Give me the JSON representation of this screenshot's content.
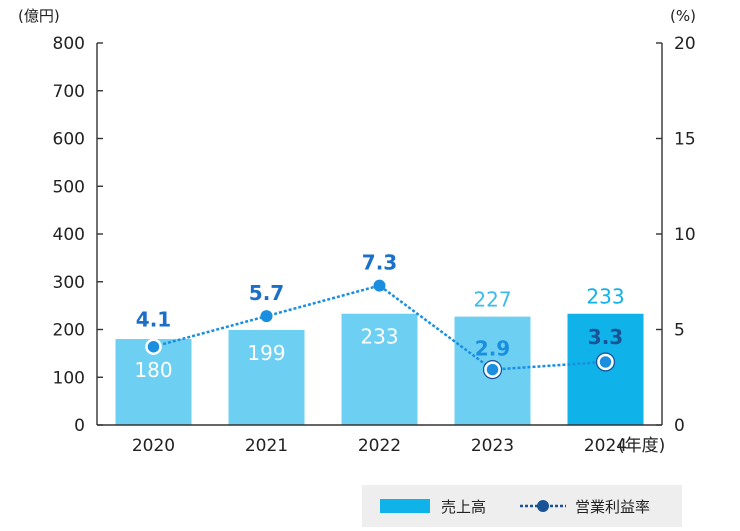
{
  "chart_data": {
    "type": "bar+line",
    "categories": [
      "2020",
      "2021",
      "2022",
      "2023",
      "2024"
    ],
    "x_suffix": "(年度)",
    "series": [
      {
        "name": "売上高",
        "kind": "bar",
        "axis": "left",
        "values": [
          180,
          199,
          233,
          227,
          233
        ],
        "labels": [
          "180",
          "199",
          "233",
          "227",
          "233"
        ],
        "color": "#6dd0f3",
        "highlight_color": "#10b2ea",
        "highlight_index": 4
      },
      {
        "name": "営業利益率",
        "kind": "line",
        "axis": "right",
        "values": [
          4.1,
          5.7,
          7.3,
          2.9,
          3.3
        ],
        "labels": [
          "4.1",
          "5.7",
          "7.3",
          "2.9",
          "3.3"
        ],
        "color": "#1a8fe0",
        "highlight_color": "#1a5296"
      }
    ],
    "y_left": {
      "unit": "(億円)",
      "min": 0,
      "max": 800,
      "ticks": [
        0,
        100,
        200,
        300,
        400,
        500,
        600,
        700,
        800
      ]
    },
    "y_right": {
      "unit": "(%)",
      "min": 0,
      "max": 20,
      "ticks": [
        0,
        5,
        10,
        15,
        20
      ]
    },
    "legend": {
      "position": "bottom-right",
      "items": [
        {
          "label": "売上高",
          "kind": "bar"
        },
        {
          "label": "営業利益率",
          "kind": "line"
        }
      ],
      "background": "#eeeeee"
    },
    "axis_color": "#333333",
    "grid": false
  }
}
